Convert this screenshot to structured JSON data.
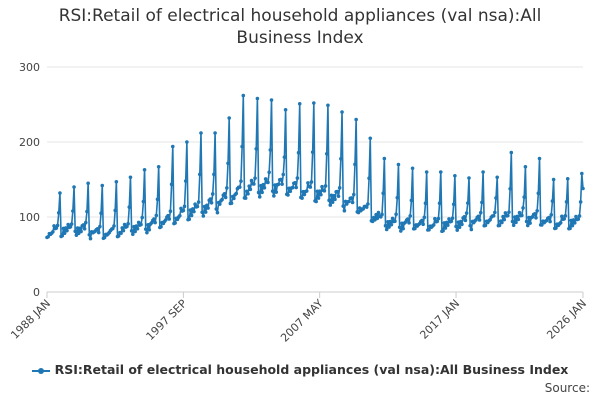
{
  "chart_data": {
    "type": "line",
    "title": "RSI:Retail of electrical household appliances (val nsa):All Business Index",
    "xlabel": "",
    "ylabel": "",
    "ylim": [
      0,
      300
    ],
    "yticks": [
      0,
      100,
      200,
      300
    ],
    "xlim": [
      1988,
      2026
    ],
    "xticks": [
      {
        "label": "1988 JAN",
        "x": 1988.0
      },
      {
        "label": "1997 SEP",
        "x": 1997.67
      },
      {
        "label": "2007 MAY",
        "x": 2007.33
      },
      {
        "label": "2017 JAN",
        "x": 2017.0
      },
      {
        "label": "2026 JAN",
        "x": 2026.0
      }
    ],
    "grid": "horizontal",
    "legend_position": "bottom",
    "series": [
      {
        "name": "RSI:Retail of electrical household appliances (val nsa):All Business Index",
        "color": "#1f77b4",
        "frequency": "monthly",
        "start": "1988 JAN",
        "seasonal_profile": [
          0.86,
          0.84,
          0.92,
          0.88,
          0.93,
          0.92,
          0.98,
          0.97,
          0.95,
          1.02,
          1.18,
          1.55
        ],
        "annual_base": [
          {
            "year": 1988,
            "value": 86
          },
          {
            "year": 1990,
            "value": 92
          },
          {
            "year": 1992,
            "value": 84
          },
          {
            "year": 1994,
            "value": 92
          },
          {
            "year": 1996,
            "value": 100
          },
          {
            "year": 1998,
            "value": 115
          },
          {
            "year": 2000,
            "value": 128
          },
          {
            "year": 2002,
            "value": 148
          },
          {
            "year": 2004,
            "value": 155
          },
          {
            "year": 2006,
            "value": 148
          },
          {
            "year": 2008,
            "value": 140
          },
          {
            "year": 2010,
            "value": 125
          },
          {
            "year": 2012,
            "value": 100
          },
          {
            "year": 2014,
            "value": 98
          },
          {
            "year": 2016,
            "value": 97
          },
          {
            "year": 2018,
            "value": 102
          },
          {
            "year": 2020,
            "value": 105
          },
          {
            "year": 2022,
            "value": 108
          },
          {
            "year": 2024,
            "value": 100
          },
          {
            "year": 2026,
            "value": 102
          }
        ],
        "december_peaks": [
          {
            "year": 1988,
            "value": 132
          },
          {
            "year": 1989,
            "value": 140
          },
          {
            "year": 1990,
            "value": 145
          },
          {
            "year": 1991,
            "value": 142
          },
          {
            "year": 1992,
            "value": 147
          },
          {
            "year": 1993,
            "value": 153
          },
          {
            "year": 1994,
            "value": 163
          },
          {
            "year": 1995,
            "value": 167
          },
          {
            "year": 1996,
            "value": 194
          },
          {
            "year": 1997,
            "value": 200
          },
          {
            "year": 1998,
            "value": 212
          },
          {
            "year": 1999,
            "value": 212
          },
          {
            "year": 2000,
            "value": 232
          },
          {
            "year": 2001,
            "value": 262
          },
          {
            "year": 2002,
            "value": 258
          },
          {
            "year": 2003,
            "value": 256
          },
          {
            "year": 2004,
            "value": 243
          },
          {
            "year": 2005,
            "value": 251
          },
          {
            "year": 2006,
            "value": 252
          },
          {
            "year": 2007,
            "value": 249
          },
          {
            "year": 2008,
            "value": 240
          },
          {
            "year": 2009,
            "value": 230
          },
          {
            "year": 2010,
            "value": 205
          },
          {
            "year": 2011,
            "value": 178
          },
          {
            "year": 2012,
            "value": 170
          },
          {
            "year": 2013,
            "value": 165
          },
          {
            "year": 2014,
            "value": 160
          },
          {
            "year": 2015,
            "value": 160
          },
          {
            "year": 2016,
            "value": 155
          },
          {
            "year": 2017,
            "value": 152
          },
          {
            "year": 2018,
            "value": 160
          },
          {
            "year": 2019,
            "value": 153
          },
          {
            "year": 2020,
            "value": 186
          },
          {
            "year": 2021,
            "value": 167
          },
          {
            "year": 2022,
            "value": 178
          },
          {
            "year": 2023,
            "value": 150
          },
          {
            "year": 2024,
            "value": 151
          },
          {
            "year": 2025,
            "value": 158
          }
        ],
        "latest": {
          "label": "2026 JAN",
          "value": 138
        }
      }
    ]
  },
  "legend": {
    "label": "RSI:Retail of electrical household appliances (val nsa):All Business Index"
  },
  "footer": {
    "source_label": "Source:"
  }
}
